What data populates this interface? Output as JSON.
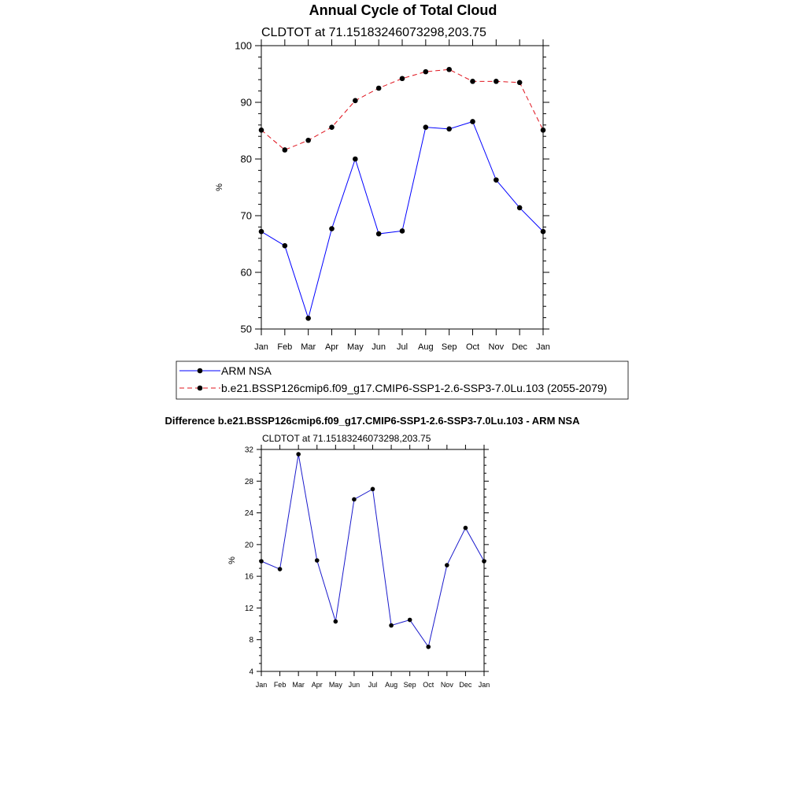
{
  "colors": {
    "obs": "#0000ff",
    "model": "#e0141e",
    "diff": "#1a1acc",
    "marker": "#000000"
  },
  "figure_title": "Annual Cycle of Total Cloud",
  "chart_data": [
    {
      "type": "line",
      "subtitle": "CLDTOT at 71.15183246073298,203.75",
      "ylabel": "%",
      "ylim": [
        50,
        100
      ],
      "yticks": [
        50,
        60,
        70,
        80,
        90,
        100
      ],
      "categories": [
        "Jan",
        "Feb",
        "Mar",
        "Apr",
        "May",
        "Jun",
        "Jul",
        "Aug",
        "Sep",
        "Oct",
        "Nov",
        "Dec",
        "Jan"
      ],
      "series": [
        {
          "name": "ARM NSA",
          "style": "solid",
          "color": "#0000ff",
          "values": [
            67.2,
            64.7,
            51.9,
            67.7,
            80.0,
            66.8,
            67.3,
            85.6,
            85.3,
            86.6,
            76.3,
            71.4,
            67.2
          ]
        },
        {
          "name": "b.e21.BSSP126cmip6.f09_g17.CMIP6-SSP1-2.6-SSP3-7.0Lu.103 (2055-2079)",
          "style": "dashed",
          "color": "#e0141e",
          "values": [
            85.1,
            81.6,
            83.3,
            85.6,
            90.3,
            92.5,
            94.2,
            95.4,
            95.8,
            93.7,
            93.7,
            93.5,
            85.1
          ]
        }
      ],
      "legend_position": "bottom",
      "grid": false
    },
    {
      "type": "line",
      "title": "Difference b.e21.BSSP126cmip6.f09_g17.CMIP6-SSP1-2.6-SSP3-7.0Lu.103 - ARM NSA",
      "subtitle": "CLDTOT at 71.15183246073298,203.75",
      "ylabel": "%",
      "ylim": [
        4,
        32
      ],
      "yticks": [
        4,
        8,
        12,
        16,
        20,
        24,
        28,
        32
      ],
      "categories": [
        "Jan",
        "Feb",
        "Mar",
        "Apr",
        "May",
        "Jun",
        "Jul",
        "Aug",
        "Sep",
        "Oct",
        "Nov",
        "Dec",
        "Jan"
      ],
      "series": [
        {
          "color": "#1a1acc",
          "values": [
            17.9,
            16.9,
            31.4,
            18.0,
            10.3,
            25.7,
            27.0,
            9.8,
            10.5,
            7.1,
            17.4,
            22.1,
            17.9
          ]
        }
      ],
      "grid": false
    }
  ]
}
